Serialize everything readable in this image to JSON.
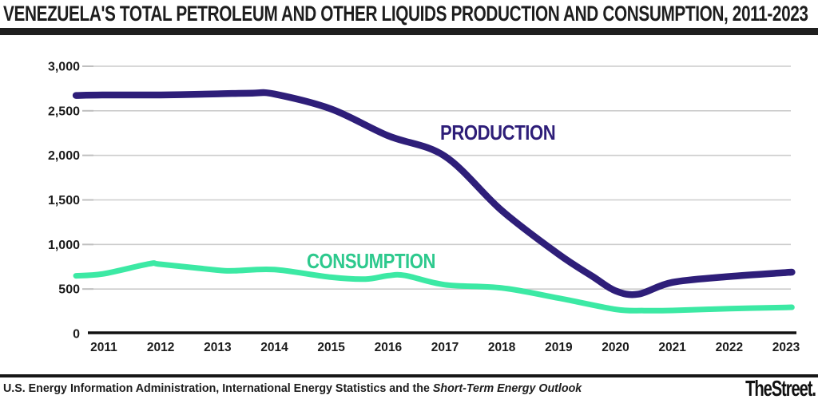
{
  "page": {
    "title": "VENEZUELA'S TOTAL PETROLEUM AND OTHER LIQUIDS PRODUCTION AND CONSUMPTION, 2011-2023",
    "source_regular": "U.S. Energy Information Administration, International Energy Statistics and the ",
    "source_italic": "Short-Term Energy Outlook",
    "logo_text": "TheStreet."
  },
  "chart_data": {
    "type": "line",
    "title": "VENEZUELA'S TOTAL PETROLEUM AND OTHER LIQUIDS PRODUCTION AND CONSUMPTION, 2011-2023",
    "x_years": [
      2011,
      2012,
      2013,
      2014,
      2015,
      2016,
      2017,
      2018,
      2019,
      2020,
      2021,
      2022,
      2023
    ],
    "ylim": [
      0,
      3000
    ],
    "yticks": [
      3000,
      2500,
      2000,
      1500,
      1000,
      500,
      0
    ],
    "ytick_labels": [
      "3,000",
      "2,500",
      "2,000",
      "1,500",
      "1,000",
      "500",
      "0"
    ],
    "grid": true,
    "gridline_color": "#cccccc",
    "axis_color": "#111111",
    "legend_position": "inline-labels",
    "series": [
      {
        "name": "PRODUCTION",
        "color": "#2e1e79",
        "values_by_year": [
          2680,
          2680,
          2690,
          2690,
          2520,
          2220,
          1990,
          1380,
          890,
          470,
          575,
          640,
          690
        ],
        "control_points": [
          [
            2010.51,
            2672
          ],
          [
            2011,
            2678
          ],
          [
            2012,
            2678
          ],
          [
            2013,
            2690
          ],
          [
            2013.6,
            2698
          ],
          [
            2014,
            2688
          ],
          [
            2015,
            2520
          ],
          [
            2016,
            2220
          ],
          [
            2017,
            1990
          ],
          [
            2018,
            1380
          ],
          [
            2019,
            890
          ],
          [
            2019.6,
            640
          ],
          [
            2020,
            480
          ],
          [
            2020.4,
            442
          ],
          [
            2021,
            575
          ],
          [
            2022,
            640
          ],
          [
            2023,
            685
          ],
          [
            2023.08,
            687
          ]
        ]
      },
      {
        "name": "CONSUMPTION",
        "color": "#3ce9a4",
        "values_by_year": [
          672,
          778,
          715,
          718,
          632,
          650,
          548,
          512,
          398,
          272,
          260,
          280,
          294
        ],
        "control_points": [
          [
            2010.51,
            648
          ],
          [
            2011,
            672
          ],
          [
            2011.8,
            783
          ],
          [
            2012,
            778
          ],
          [
            2013,
            712
          ],
          [
            2013.3,
            705
          ],
          [
            2014,
            718
          ],
          [
            2015,
            632
          ],
          [
            2015.6,
            612
          ],
          [
            2016,
            650
          ],
          [
            2016.3,
            652
          ],
          [
            2017,
            548
          ],
          [
            2018,
            512
          ],
          [
            2019,
            398
          ],
          [
            2020,
            272
          ],
          [
            2020.5,
            258
          ],
          [
            2021,
            260
          ],
          [
            2022,
            280
          ],
          [
            2023,
            294
          ],
          [
            2023.08,
            295
          ]
        ]
      }
    ],
    "series_labels": [
      {
        "text": "PRODUCTION",
        "color": "#2e1e79"
      },
      {
        "text": "CONSUMPTION",
        "color": "#2dc98d"
      }
    ]
  }
}
